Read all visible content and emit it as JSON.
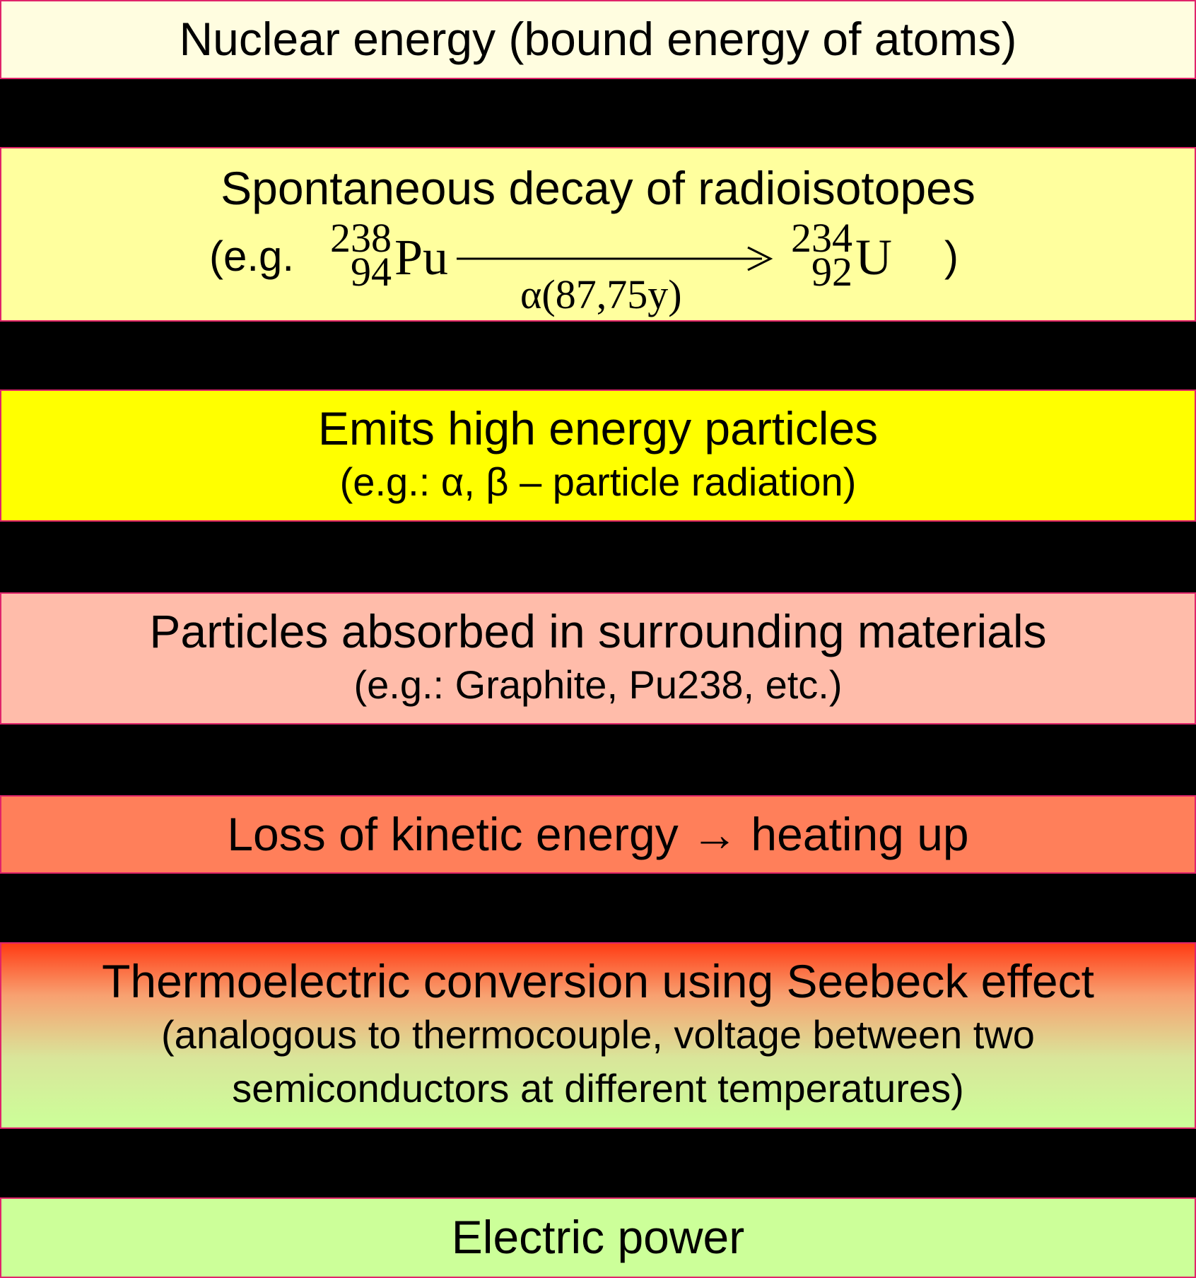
{
  "steps": [
    {
      "main": "Nuclear energy (bound energy of atoms)"
    },
    {
      "main": "Spontaneous decay of radioisotopes",
      "reaction": {
        "prefix": "(e.g.",
        "parent_mass": "238",
        "parent_z": "94",
        "parent_symbol": "Pu",
        "decay_label": "α(87,75y)",
        "daughter_mass": "234",
        "daughter_z": "92",
        "daughter_symbol": "U",
        "suffix": ")"
      }
    },
    {
      "main": "Emits high energy particles",
      "sub": "(e.g.: α, β – particle radiation)"
    },
    {
      "main": "Particles absorbed in surrounding materials",
      "sub": "(e.g.: Graphite, Pu238, etc.)"
    },
    {
      "main": "Loss of kinetic energy → heating up"
    },
    {
      "main": "Thermoelectric conversion using Seebeck effect",
      "sub": "(analogous to thermocouple, voltage between two semiconductors at different temperatures)"
    },
    {
      "main": "Electric power"
    }
  ],
  "colors": {
    "background": "#000000",
    "border": "#e0246a",
    "step1": "#fffde0",
    "step2": "#ffff9e",
    "step3": "#ffff00",
    "step4": "#ffbcaa",
    "step5": "#ff7f5a",
    "step6_top": "#ff3c14",
    "step6_bottom": "#ccff99",
    "step7": "#ccff99"
  }
}
